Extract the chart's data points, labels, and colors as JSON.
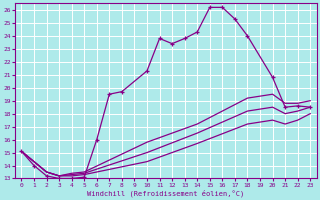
{
  "xlabel": "Windchill (Refroidissement éolien,°C)",
  "background_color": "#aeeaea",
  "grid_color": "#ffffff",
  "line_color": "#880088",
  "xlim": [
    -0.5,
    23.5
  ],
  "ylim": [
    13,
    26.5
  ],
  "xticks": [
    0,
    1,
    2,
    3,
    4,
    5,
    6,
    7,
    8,
    9,
    10,
    11,
    12,
    13,
    14,
    15,
    16,
    17,
    18,
    19,
    20,
    21,
    22,
    23
  ],
  "yticks": [
    13,
    14,
    15,
    16,
    17,
    18,
    19,
    20,
    21,
    22,
    23,
    24,
    25,
    26
  ],
  "main_x": [
    0,
    1,
    2,
    3,
    4,
    5,
    6,
    7,
    8,
    10,
    11,
    12,
    13,
    14,
    15,
    16,
    17,
    18,
    20,
    21,
    22,
    23
  ],
  "main_y": [
    15.1,
    14.0,
    13.2,
    13.0,
    13.0,
    13.1,
    16.0,
    19.5,
    19.7,
    21.3,
    23.8,
    23.4,
    23.8,
    24.3,
    26.2,
    26.2,
    25.3,
    24.0,
    20.8,
    18.5,
    18.6,
    18.5
  ],
  "line2_x": [
    0,
    2,
    3,
    4,
    5,
    10,
    14,
    18,
    20,
    21,
    22,
    23
  ],
  "line2_y": [
    15.1,
    13.5,
    13.2,
    13.2,
    13.3,
    14.3,
    15.7,
    17.2,
    17.5,
    17.2,
    17.5,
    18.0
  ],
  "line3_x": [
    0,
    2,
    3,
    4,
    5,
    10,
    14,
    18,
    20,
    21,
    22,
    23
  ],
  "line3_y": [
    15.1,
    13.5,
    13.2,
    13.3,
    13.4,
    15.0,
    16.5,
    18.2,
    18.5,
    18.0,
    18.2,
    18.5
  ],
  "line4_x": [
    0,
    2,
    3,
    4,
    5,
    10,
    14,
    18,
    20,
    21,
    22,
    23
  ],
  "line4_y": [
    15.1,
    13.5,
    13.2,
    13.4,
    13.5,
    15.8,
    17.2,
    19.2,
    19.5,
    18.8,
    18.8,
    19.0
  ]
}
